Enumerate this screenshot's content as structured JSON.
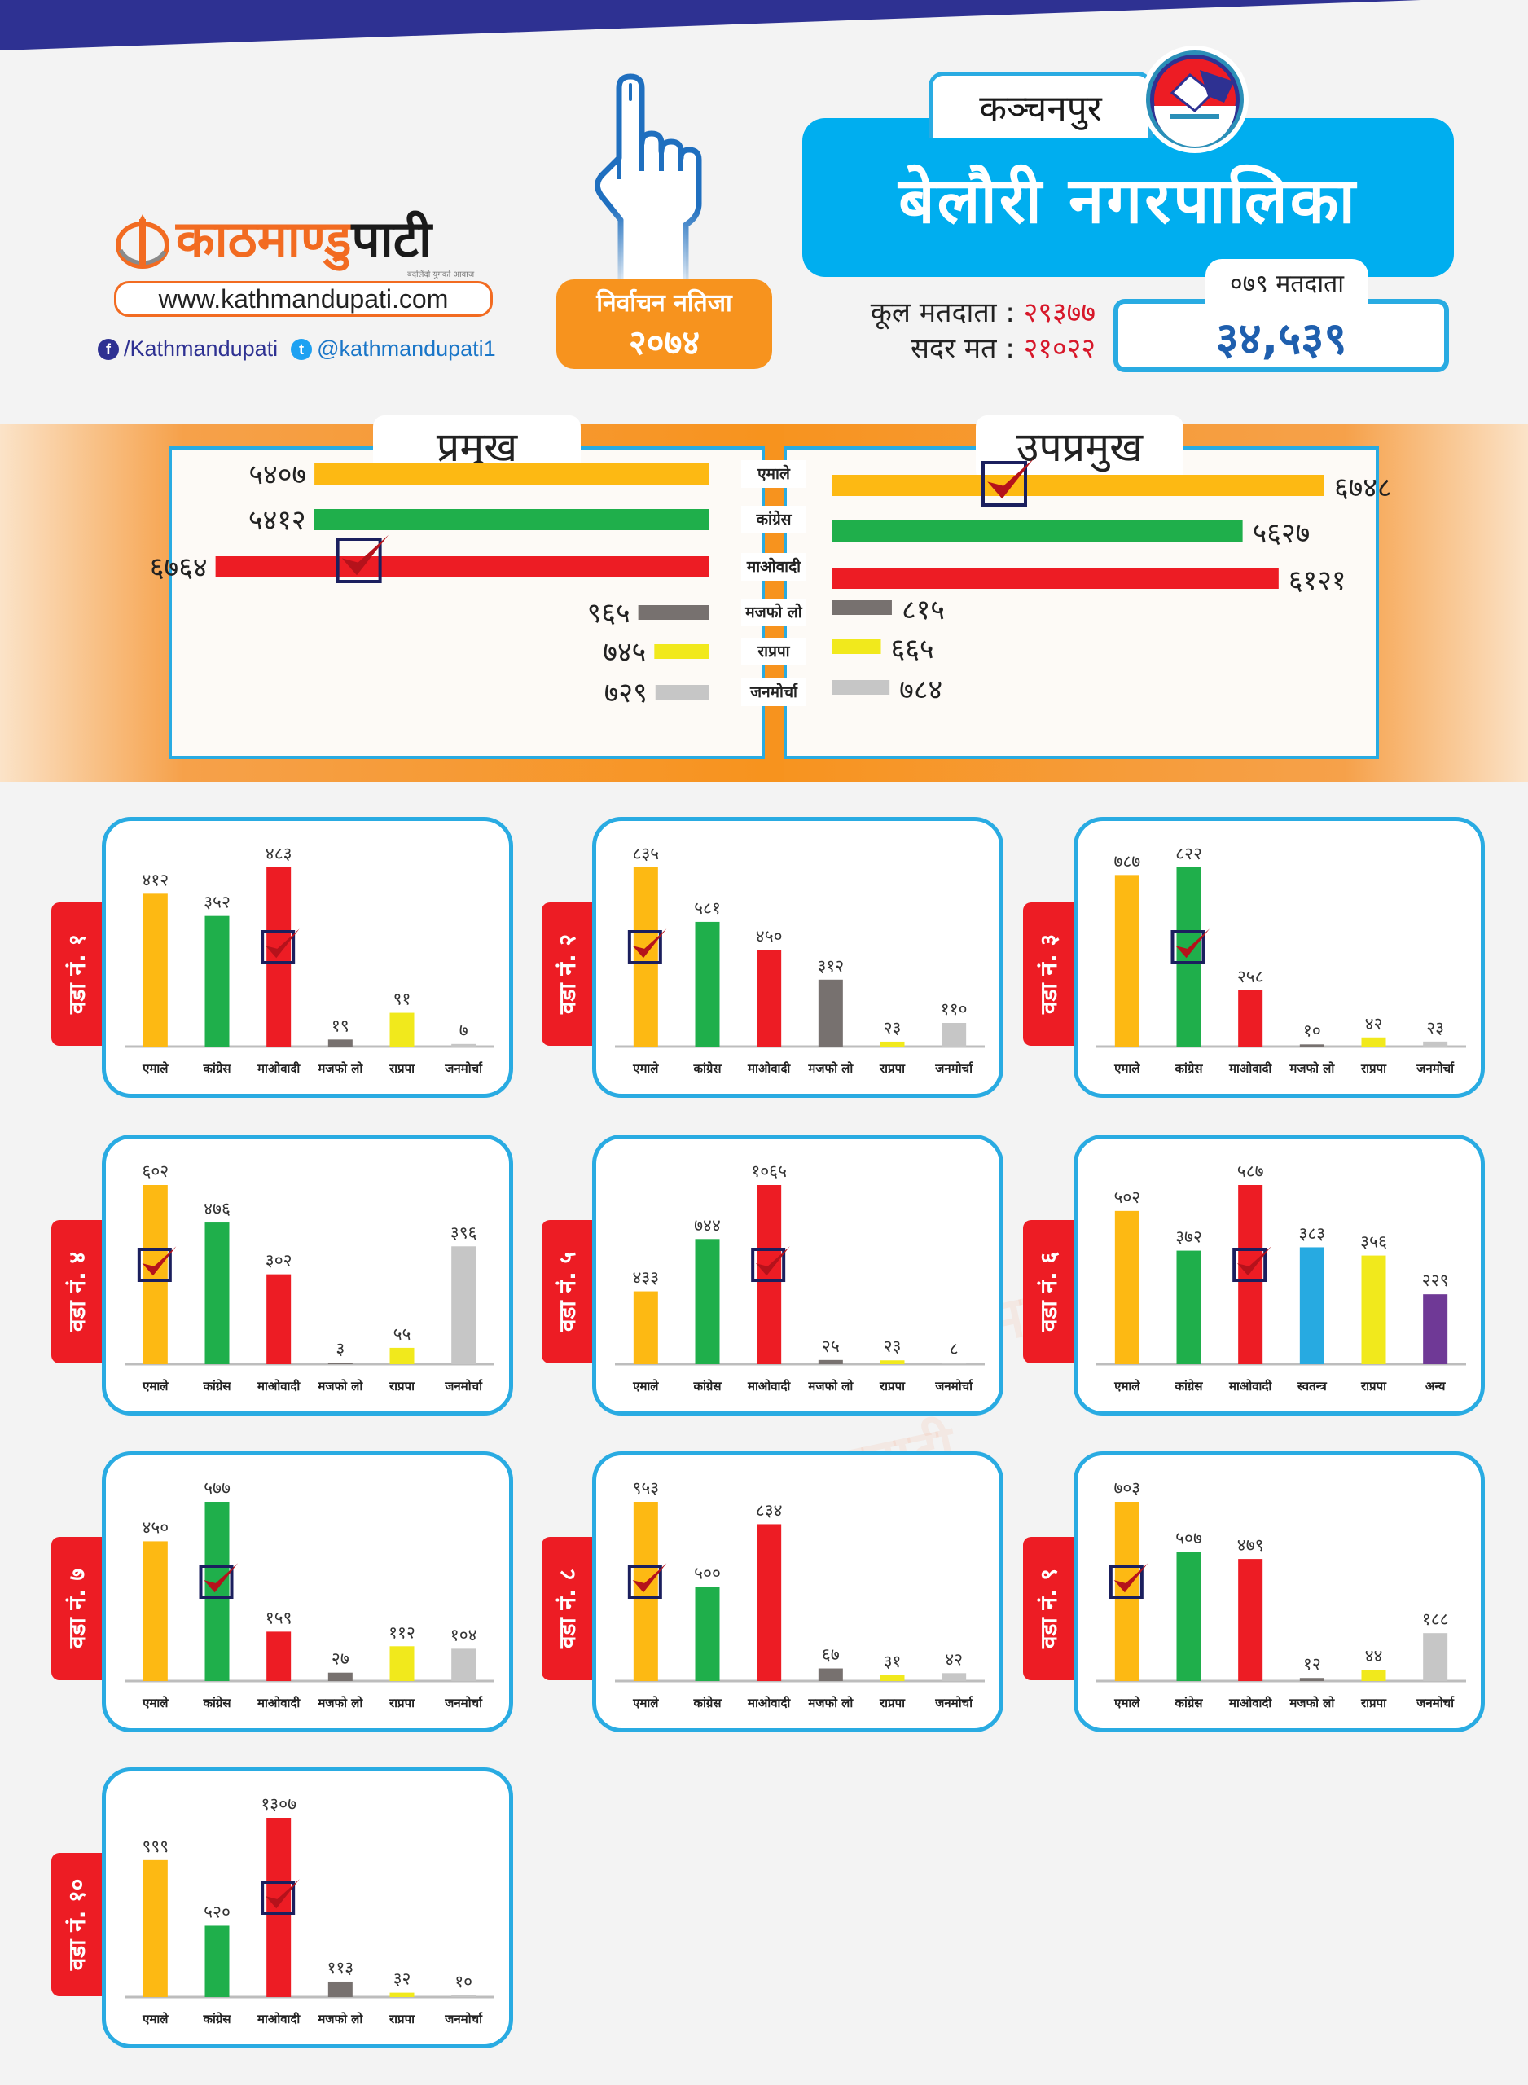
{
  "brand": {
    "logo_orange": "काठमाण्डु",
    "logo_dark": "पाटी",
    "tagline": "बदलिंदो युगको आवाज",
    "url": "www.kathmandupati.com",
    "facebook": "/Kathmandupati",
    "twitter": "@kathmandupati1",
    "icons": {
      "facebook": "facebook-icon",
      "twitter": "twitter-icon",
      "logo": "dharahara-globe-icon"
    }
  },
  "election": {
    "label": "निर्वाचन नतिजा",
    "year": "२०७४",
    "hand_icon": "voting-finger-icon"
  },
  "header": {
    "district": "कञ्चनपुर",
    "municipality": "बेलौरी नगरपालिका",
    "emblem_icon": "ballot-box-icon"
  },
  "stats": {
    "total_voters_label": "कूल मतदाता :",
    "total_voters": "२९३७७",
    "valid_votes_label": "सदर मत :",
    "valid_votes": "२१०२२",
    "voters_079_label": "०७९ मतदाता",
    "voters_079": "३४,५३९"
  },
  "colors": {
    "एमाले": "#fdb913",
    "कांग्रेस": "#1faf4b",
    "माओवादी": "#ed1c24",
    "मजफो लो": "#77716f",
    "राप्रपा": "#f1e91c",
    "जनमोर्चा": "#c6c6c6",
    "स्वतन्त्र": "#27aae1",
    "अन्य": "#6f3996",
    "accent_blue": "#29abe2",
    "accent_orange": "#f7931e",
    "navy": "#2e3192",
    "ward_tab": "#ed1c24"
  },
  "chart_data": [
    {
      "type": "bar",
      "title": "प्रमुख",
      "orientation": "horizontal",
      "categories": [
        "एमाले",
        "कांग्रेस",
        "माओवादी",
        "मजफो लो",
        "राप्रपा",
        "जनमोर्चा"
      ],
      "values": [
        5407,
        5412,
        6764,
        965,
        745,
        729
      ],
      "labels": [
        "५४०७",
        "५४१२",
        "६७६४",
        "९६५",
        "७४५",
        "७२९"
      ],
      "winner": "माओवादी"
    },
    {
      "type": "bar",
      "title": "उपप्रमुख",
      "orientation": "horizontal",
      "categories": [
        "एमाले",
        "कांग्रेस",
        "माओवादी",
        "मजफो लो",
        "राप्रपा",
        "जनमोर्चा"
      ],
      "values": [
        6748,
        5627,
        6121,
        815,
        665,
        784
      ],
      "labels": [
        "६७४८",
        "५६२७",
        "६१२१",
        "८१५",
        "६६५",
        "७८४"
      ],
      "winner": "एमाले"
    },
    {
      "type": "bar",
      "title": "वडा नं. १",
      "categories": [
        "एमाले",
        "कांग्रेस",
        "माओवादी",
        "मजफो लो",
        "राप्रपा",
        "जनमोर्चा"
      ],
      "values": [
        412,
        352,
        483,
        19,
        91,
        7
      ],
      "labels": [
        "४१२",
        "३५२",
        "४८३",
        "१९",
        "९१",
        "७"
      ],
      "winner": "माओवादी"
    },
    {
      "type": "bar",
      "title": "वडा नं. २",
      "categories": [
        "एमाले",
        "कांग्रेस",
        "माओवादी",
        "मजफो लो",
        "राप्रपा",
        "जनमोर्चा"
      ],
      "values": [
        835,
        581,
        450,
        312,
        23,
        110
      ],
      "labels": [
        "८३५",
        "५८१",
        "४५०",
        "३१२",
        "२३",
        "११०"
      ],
      "winner": "एमाले"
    },
    {
      "type": "bar",
      "title": "वडा नं. ३",
      "categories": [
        "एमाले",
        "कांग्रेस",
        "माओवादी",
        "मजफो लो",
        "राप्रपा",
        "जनमोर्चा"
      ],
      "values": [
        787,
        822,
        258,
        10,
        42,
        23
      ],
      "labels": [
        "७८७",
        "८२२",
        "२५८",
        "१०",
        "४२",
        "२३"
      ],
      "winner": "कांग्रेस"
    },
    {
      "type": "bar",
      "title": "वडा नं. ४",
      "categories": [
        "एमाले",
        "कांग्रेस",
        "माओवादी",
        "मजफो लो",
        "राप्रपा",
        "जनमोर्चा"
      ],
      "values": [
        602,
        476,
        302,
        3,
        55,
        396
      ],
      "labels": [
        "६०२",
        "४७६",
        "३०२",
        "३",
        "५५",
        "३९६"
      ],
      "winner": "एमाले"
    },
    {
      "type": "bar",
      "title": "वडा नं. ५",
      "categories": [
        "एमाले",
        "कांग्रेस",
        "माओवादी",
        "मजफो लो",
        "राप्रपा",
        "जनमोर्चा"
      ],
      "values": [
        433,
        744,
        1065,
        25,
        23,
        8
      ],
      "labels": [
        "४३३",
        "७४४",
        "१०६५",
        "२५",
        "२३",
        "८"
      ],
      "winner": "माओवादी"
    },
    {
      "type": "bar",
      "title": "वडा नं. ६",
      "categories": [
        "एमाले",
        "कांग्रेस",
        "माओवादी",
        "स्वतन्त्र",
        "राप्रपा",
        "अन्य"
      ],
      "values": [
        502,
        372,
        587,
        383,
        356,
        229
      ],
      "labels": [
        "५०२",
        "३७२",
        "५८७",
        "३८३",
        "३५६",
        "२२९"
      ],
      "winner": "माओवादी"
    },
    {
      "type": "bar",
      "title": "वडा नं. ७",
      "categories": [
        "एमाले",
        "कांग्रेस",
        "माओवादी",
        "मजफो लो",
        "राप्रपा",
        "जनमोर्चा"
      ],
      "values": [
        450,
        577,
        159,
        27,
        112,
        104
      ],
      "labels": [
        "४५०",
        "५७७",
        "१५९",
        "२७",
        "११२",
        "१०४"
      ],
      "winner": "कांग्रेस"
    },
    {
      "type": "bar",
      "title": "वडा नं. ८",
      "categories": [
        "एमाले",
        "कांग्रेस",
        "माओवादी",
        "मजफो लो",
        "राप्रपा",
        "जनमोर्चा"
      ],
      "values": [
        953,
        500,
        834,
        67,
        31,
        42
      ],
      "labels": [
        "९५३",
        "५००",
        "८३४",
        "६७",
        "३१",
        "४२"
      ],
      "winner": "एमाले"
    },
    {
      "type": "bar",
      "title": "वडा नं. ९",
      "categories": [
        "एमाले",
        "कांग्रेस",
        "माओवादी",
        "मजफो लो",
        "राप्रपा",
        "जनमोर्चा"
      ],
      "values": [
        703,
        507,
        479,
        12,
        44,
        188
      ],
      "labels": [
        "७०३",
        "५०७",
        "४७९",
        "१२",
        "४४",
        "१८८"
      ],
      "winner": "एमाले"
    },
    {
      "type": "bar",
      "title": "वडा नं. १०",
      "categories": [
        "एमाले",
        "कांग्रेस",
        "माओवादी",
        "मजफो लो",
        "राप्रपा",
        "जनमोर्चा"
      ],
      "values": [
        999,
        520,
        1307,
        113,
        32,
        10
      ],
      "labels": [
        "९९९",
        "५२०",
        "१३०७",
        "११३",
        "३२",
        "१०"
      ],
      "winner": "माओवादी"
    }
  ]
}
